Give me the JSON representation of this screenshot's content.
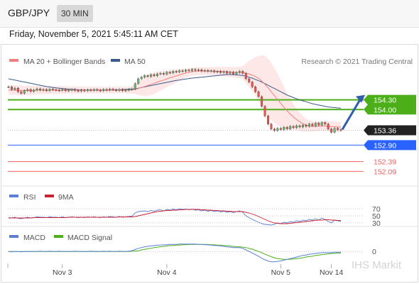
{
  "header": {
    "pair": "GBP/JPY",
    "timeframe": "30 MIN"
  },
  "date_line": "Friday, November 5, 2021 5:45:11 AM CET",
  "watermark": "IHS Markit",
  "colors": {
    "price_up": "#66bb6a",
    "price_down": "#ef5350",
    "ma20": "#f08080",
    "band_fill": "#fde3e3",
    "ma50": "#3b5a8a",
    "resistance": "#4caf1a",
    "pivot": "#2962ff",
    "support": "#f06060",
    "rsi": "#5b7fd6",
    "rsi_ma": "#cc2233",
    "macd": "#5b7fd6",
    "macd_signal": "#4caf1a",
    "arrow": "#2f5fa8",
    "last_price": "#222222"
  },
  "chart_data": {
    "type": "candlestick",
    "price_panel": {
      "legend": [
        "MA 20 + Bollinger Bands",
        "MA 50"
      ],
      "research_label": "Research © 2021 Trading Central",
      "ylim": [
        151.9,
        155.3
      ],
      "levels": [
        {
          "label": "154.30",
          "value": 154.3,
          "kind": "resistance"
        },
        {
          "label": "154.00",
          "value": 154.0,
          "kind": "resistance"
        },
        {
          "label": "153.36",
          "value": 153.36,
          "kind": "last"
        },
        {
          "label": "152.90",
          "value": 152.9,
          "kind": "pivot"
        },
        {
          "label": "152.39",
          "value": 152.39,
          "kind": "support"
        },
        {
          "label": "152.09",
          "value": 152.09,
          "kind": "support"
        }
      ],
      "close": [
        154.7,
        154.62,
        154.66,
        154.55,
        154.5,
        154.58,
        154.62,
        154.56,
        154.6,
        154.64,
        154.6,
        154.62,
        154.58,
        154.63,
        154.61,
        154.6,
        154.59,
        154.62,
        154.58,
        154.6,
        154.62,
        154.59,
        154.57,
        154.6,
        154.58,
        154.61,
        154.59,
        154.62,
        154.6,
        154.58,
        154.62,
        154.6,
        154.63,
        154.61,
        154.59,
        154.62,
        154.58,
        154.6,
        154.62,
        154.64,
        154.8,
        154.95,
        155.0,
        155.05,
        155.02,
        155.08,
        155.04,
        155.1,
        155.12,
        155.09,
        155.15,
        155.13,
        155.18,
        155.16,
        155.2,
        155.18,
        155.22,
        155.2,
        155.24,
        155.21,
        155.23,
        155.19,
        155.21,
        155.18,
        155.2,
        155.16,
        155.18,
        155.14,
        155.17,
        155.12,
        155.15,
        155.1,
        155.14,
        155.18,
        155.12,
        154.95,
        154.85,
        154.7,
        154.55,
        154.4,
        154.1,
        153.8,
        153.55,
        153.4,
        153.35,
        153.42,
        153.38,
        153.45,
        153.4,
        153.48,
        153.44,
        153.5,
        153.46,
        153.52,
        153.48,
        153.55,
        153.5,
        153.58,
        153.52,
        153.6,
        153.55,
        153.4,
        153.3,
        153.42,
        153.38,
        153.36
      ],
      "ma20": [
        154.6,
        154.6,
        154.6,
        154.59,
        154.59,
        154.59,
        154.59,
        154.59,
        154.59,
        154.6,
        154.6,
        154.6,
        154.6,
        154.6,
        154.6,
        154.6,
        154.6,
        154.6,
        154.6,
        154.6,
        154.6,
        154.6,
        154.6,
        154.6,
        154.6,
        154.6,
        154.6,
        154.6,
        154.6,
        154.6,
        154.6,
        154.6,
        154.6,
        154.6,
        154.6,
        154.6,
        154.6,
        154.6,
        154.6,
        154.61,
        154.62,
        154.65,
        154.68,
        154.71,
        154.74,
        154.78,
        154.81,
        154.85,
        154.88,
        154.91,
        154.95,
        154.98,
        155.01,
        155.04,
        155.07,
        155.1,
        155.13,
        155.15,
        155.17,
        155.18,
        155.19,
        155.19,
        155.19,
        155.19,
        155.19,
        155.18,
        155.18,
        155.18,
        155.17,
        155.17,
        155.16,
        155.15,
        155.15,
        155.15,
        155.14,
        155.12,
        155.1,
        155.06,
        155.02,
        154.96,
        154.88,
        154.78,
        154.67,
        154.55,
        154.43,
        154.31,
        154.19,
        154.07,
        153.96,
        153.86,
        153.77,
        153.69,
        153.62,
        153.56,
        153.52,
        153.49,
        153.48,
        153.48,
        153.48,
        153.49,
        153.49,
        153.48,
        153.47,
        153.47,
        153.46,
        153.46
      ],
      "band_width": [
        0.15,
        0.15,
        0.15,
        0.15,
        0.15,
        0.14,
        0.14,
        0.14,
        0.14,
        0.13,
        0.13,
        0.13,
        0.12,
        0.12,
        0.12,
        0.12,
        0.12,
        0.12,
        0.11,
        0.11,
        0.11,
        0.11,
        0.11,
        0.11,
        0.1,
        0.1,
        0.1,
        0.1,
        0.1,
        0.1,
        0.1,
        0.1,
        0.1,
        0.1,
        0.1,
        0.1,
        0.1,
        0.1,
        0.11,
        0.12,
        0.15,
        0.2,
        0.25,
        0.3,
        0.32,
        0.33,
        0.33,
        0.32,
        0.3,
        0.28,
        0.26,
        0.24,
        0.22,
        0.2,
        0.18,
        0.16,
        0.14,
        0.13,
        0.12,
        0.12,
        0.12,
        0.12,
        0.12,
        0.12,
        0.13,
        0.13,
        0.14,
        0.14,
        0.15,
        0.15,
        0.16,
        0.16,
        0.17,
        0.18,
        0.2,
        0.3,
        0.4,
        0.5,
        0.6,
        0.7,
        0.8,
        0.88,
        0.9,
        0.88,
        0.85,
        0.8,
        0.72,
        0.64,
        0.56,
        0.48,
        0.4,
        0.34,
        0.28,
        0.24,
        0.2,
        0.18,
        0.16,
        0.15,
        0.15,
        0.15,
        0.15,
        0.16,
        0.17,
        0.16,
        0.16,
        0.16
      ],
      "ma50": [
        154.95,
        154.93,
        154.91,
        154.89,
        154.87,
        154.85,
        154.83,
        154.81,
        154.79,
        154.77,
        154.75,
        154.73,
        154.71,
        154.7,
        154.68,
        154.67,
        154.66,
        154.65,
        154.64,
        154.63,
        154.62,
        154.62,
        154.61,
        154.61,
        154.6,
        154.6,
        154.6,
        154.6,
        154.6,
        154.6,
        154.6,
        154.6,
        154.6,
        154.61,
        154.61,
        154.61,
        154.62,
        154.62,
        154.63,
        154.63,
        154.64,
        154.66,
        154.68,
        154.7,
        154.72,
        154.74,
        154.76,
        154.78,
        154.8,
        154.82,
        154.84,
        154.86,
        154.88,
        154.9,
        154.91,
        154.93,
        154.94,
        154.96,
        154.97,
        154.98,
        154.99,
        155.0,
        155.01,
        155.02,
        155.03,
        155.04,
        155.05,
        155.06,
        155.07,
        155.08,
        155.08,
        155.08,
        155.07,
        155.06,
        155.05,
        155.03,
        155.0,
        154.97,
        154.93,
        154.89,
        154.85,
        154.8,
        154.75,
        154.7,
        154.65,
        154.6,
        154.55,
        154.5,
        154.45,
        154.41,
        154.37,
        154.33,
        154.3,
        154.27,
        154.24,
        154.21,
        154.18,
        154.16,
        154.14,
        154.12,
        154.1,
        154.08,
        154.07,
        154.06,
        154.05,
        154.04
      ]
    },
    "rsi_panel": {
      "legend": [
        "RSI",
        "9MA"
      ],
      "levels": [
        {
          "label": "70",
          "value": 70
        },
        {
          "label": "50",
          "value": 50
        },
        {
          "label": "30",
          "value": 30
        }
      ],
      "ylim": [
        0,
        100
      ],
      "rsi": [
        45,
        44,
        46,
        43,
        42,
        44,
        46,
        44,
        45,
        47,
        46,
        46,
        45,
        47,
        46,
        46,
        45,
        47,
        45,
        46,
        47,
        46,
        45,
        46,
        45,
        47,
        46,
        47,
        46,
        45,
        47,
        46,
        48,
        47,
        46,
        48,
        46,
        47,
        48,
        49,
        58,
        62,
        63,
        64,
        62,
        65,
        63,
        66,
        67,
        64,
        68,
        66,
        69,
        67,
        70,
        68,
        69,
        67,
        69,
        66,
        67,
        64,
        66,
        63,
        65,
        62,
        64,
        61,
        63,
        60,
        62,
        59,
        62,
        64,
        60,
        50,
        45,
        40,
        36,
        32,
        28,
        26,
        25,
        24,
        26,
        30,
        28,
        32,
        30,
        34,
        32,
        36,
        34,
        38,
        36,
        40,
        38,
        42,
        38,
        44,
        40,
        34,
        30,
        38,
        36,
        35
      ],
      "ma9": [
        44,
        44,
        44,
        44,
        44,
        44,
        44,
        44,
        45,
        45,
        45,
        45,
        45,
        45,
        45,
        45,
        45,
        45,
        45,
        46,
        46,
        46,
        46,
        46,
        46,
        46,
        46,
        46,
        46,
        46,
        46,
        46,
        46,
        46,
        46,
        47,
        47,
        47,
        47,
        47,
        48,
        50,
        52,
        54,
        56,
        58,
        60,
        62,
        63,
        64,
        65,
        65,
        66,
        66,
        67,
        67,
        68,
        68,
        68,
        68,
        68,
        67,
        67,
        66,
        66,
        65,
        65,
        64,
        64,
        63,
        63,
        62,
        62,
        62,
        62,
        60,
        58,
        55,
        52,
        48,
        44,
        40,
        36,
        33,
        30,
        29,
        28,
        28,
        28,
        29,
        30,
        31,
        32,
        33,
        34,
        35,
        36,
        37,
        38,
        38,
        39,
        39,
        38,
        38,
        37,
        37
      ]
    },
    "macd_panel": {
      "legend": [
        "MACD",
        "MACD Signal"
      ],
      "levels": [
        {
          "label": "0",
          "value": 0
        }
      ],
      "ylim": [
        -0.32,
        0.22
      ],
      "macd": [
        0.0,
        -0.01,
        0.0,
        0.0,
        -0.01,
        0.0,
        0.0,
        0.0,
        0.0,
        0.0,
        0.01,
        0.0,
        0.0,
        0.01,
        0.0,
        0.0,
        0.01,
        0.0,
        0.0,
        0.0,
        0.0,
        0.01,
        0.0,
        0.0,
        0.0,
        0.0,
        0.01,
        0.0,
        0.0,
        0.0,
        0.01,
        0.0,
        0.01,
        0.0,
        0.0,
        0.01,
        0.0,
        0.0,
        0.01,
        0.02,
        0.05,
        0.08,
        0.1,
        0.12,
        0.13,
        0.14,
        0.15,
        0.16,
        0.16,
        0.17,
        0.17,
        0.18,
        0.18,
        0.18,
        0.19,
        0.19,
        0.19,
        0.19,
        0.19,
        0.19,
        0.18,
        0.18,
        0.17,
        0.17,
        0.16,
        0.15,
        0.15,
        0.14,
        0.13,
        0.12,
        0.11,
        0.1,
        0.1,
        0.1,
        0.08,
        0.04,
        0.0,
        -0.04,
        -0.08,
        -0.12,
        -0.17,
        -0.21,
        -0.24,
        -0.26,
        -0.26,
        -0.25,
        -0.24,
        -0.22,
        -0.2,
        -0.18,
        -0.16,
        -0.14,
        -0.12,
        -0.1,
        -0.09,
        -0.07,
        -0.06,
        -0.05,
        -0.04,
        -0.03,
        -0.03,
        -0.03,
        -0.03,
        -0.02,
        -0.02,
        -0.02
      ],
      "signal": [
        0.0,
        0.0,
        0.0,
        0.0,
        0.0,
        0.0,
        0.0,
        0.0,
        0.0,
        0.0,
        0.0,
        0.0,
        0.0,
        0.0,
        0.0,
        0.0,
        0.0,
        0.0,
        0.0,
        0.0,
        0.0,
        0.0,
        0.0,
        0.0,
        0.0,
        0.0,
        0.0,
        0.0,
        0.0,
        0.0,
        0.0,
        0.0,
        0.0,
        0.0,
        0.0,
        0.0,
        0.0,
        0.0,
        0.0,
        0.01,
        0.01,
        0.02,
        0.04,
        0.05,
        0.07,
        0.08,
        0.1,
        0.11,
        0.12,
        0.13,
        0.14,
        0.15,
        0.15,
        0.16,
        0.16,
        0.17,
        0.17,
        0.18,
        0.18,
        0.18,
        0.18,
        0.18,
        0.18,
        0.18,
        0.17,
        0.17,
        0.16,
        0.16,
        0.15,
        0.15,
        0.14,
        0.13,
        0.12,
        0.12,
        0.11,
        0.1,
        0.08,
        0.06,
        0.03,
        0.0,
        -0.03,
        -0.07,
        -0.1,
        -0.13,
        -0.16,
        -0.18,
        -0.19,
        -0.2,
        -0.2,
        -0.2,
        -0.19,
        -0.18,
        -0.17,
        -0.16,
        -0.14,
        -0.13,
        -0.12,
        -0.1,
        -0.09,
        -0.08,
        -0.07,
        -0.06,
        -0.05,
        -0.05,
        -0.04,
        -0.04
      ]
    },
    "x_labels": [
      "Nov 3",
      "Nov 4",
      "Nov 5",
      "Nov 14"
    ],
    "x_label_positions": [
      17,
      50,
      86,
      102
    ]
  }
}
